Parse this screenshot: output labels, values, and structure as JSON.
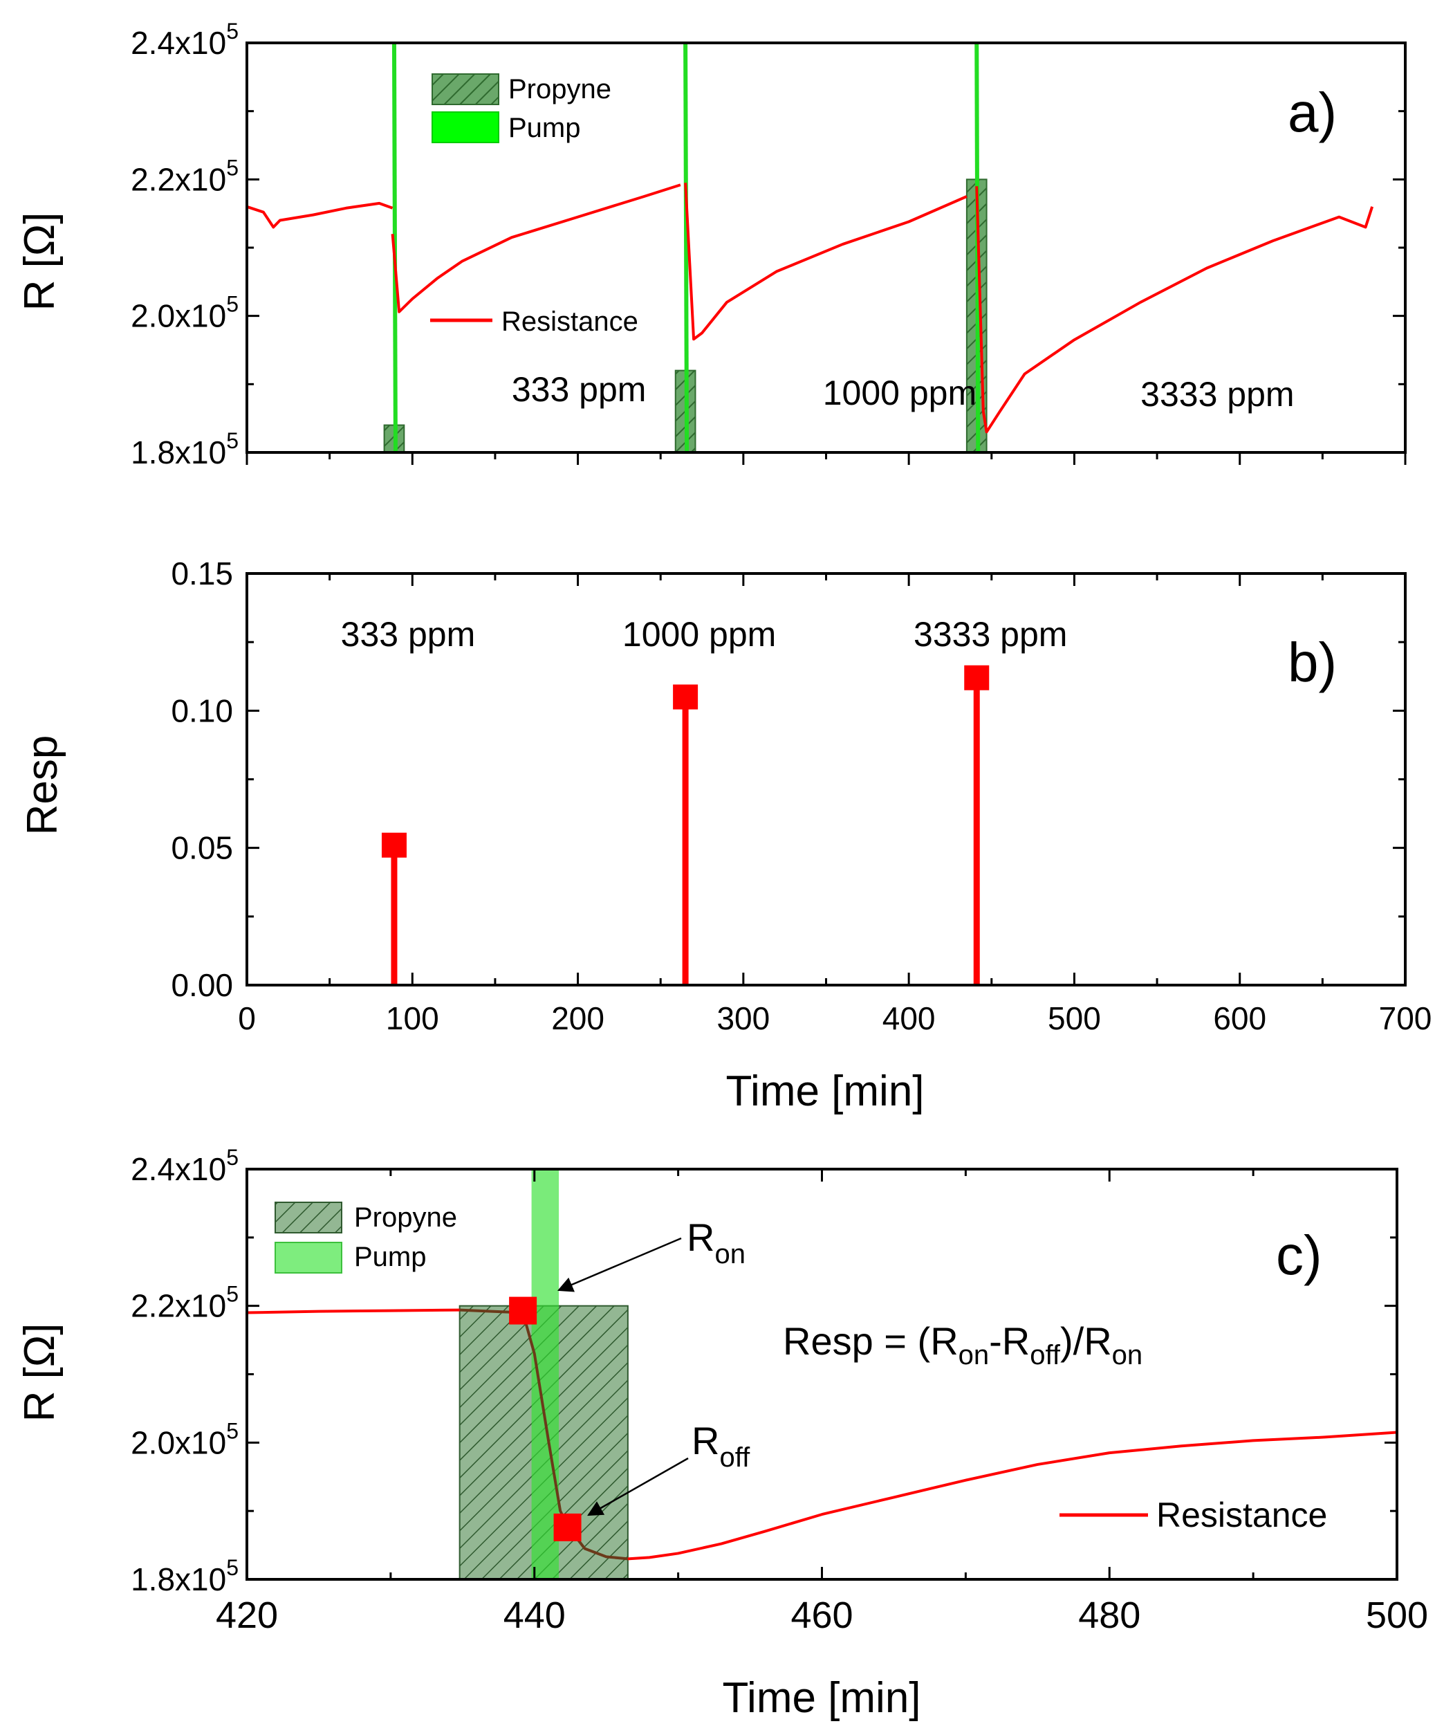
{
  "chart_data": [
    {
      "id": "a",
      "type": "line",
      "panel_label": "a)",
      "ylabel": "R [Ω]",
      "xlabel": "",
      "xlim": [
        0,
        700
      ],
      "ylim": [
        180000,
        240000
      ],
      "y_ticks": [
        {
          "value": 180000,
          "mant": "1.8x10",
          "exp": "5"
        },
        {
          "value": 200000,
          "mant": "2.0x10",
          "exp": "5"
        },
        {
          "value": 220000,
          "mant": "2.2x10",
          "exp": "5"
        },
        {
          "value": 240000,
          "mant": "2.4x10",
          "exp": "5"
        }
      ],
      "legend": {
        "propyne": "Propyne",
        "pump": "Pump",
        "resistance": "Resistance"
      },
      "propyne_bars": [
        {
          "x0": 83,
          "x1": 95,
          "top": 184000
        },
        {
          "x0": 259,
          "x1": 271,
          "top": 192000
        },
        {
          "x0": 435,
          "x1": 447,
          "top": 220000
        }
      ],
      "pump_lines": [
        89,
        265,
        441
      ],
      "annotations": [
        {
          "text": "333 ppm",
          "x": 160,
          "y": 187500
        },
        {
          "text": "1000 ppm",
          "x": 348,
          "y": 187000
        },
        {
          "text": "3333 ppm",
          "x": 540,
          "y": 186800
        }
      ],
      "series": [
        {
          "name": "Resistance",
          "color": "#ff0000",
          "segments": [
            {
              "x": [
                0,
                10,
                16,
                20,
                40,
                60,
                80,
                88
              ],
              "y": [
                216000,
                215200,
                213000,
                214000,
                214800,
                215800,
                216500,
                215800
              ]
            },
            {
              "x": [
                88,
                92,
                100,
                115,
                130,
                160,
                200,
                240,
                262
              ],
              "y": [
                212000,
                200600,
                202500,
                205500,
                208000,
                211500,
                214500,
                217500,
                219200
              ]
            },
            {
              "x": [
                265,
                270,
                275,
                290,
                320,
                360,
                400,
                435
              ],
              "y": [
                219500,
                196600,
                197500,
                202000,
                206500,
                210500,
                213800,
                217500
              ]
            },
            {
              "x": [
                441,
                445,
                447,
                455,
                470,
                500,
                540,
                580,
                620,
                660,
                676,
                678,
                680
              ],
              "y": [
                219000,
                186000,
                183000,
                186000,
                191500,
                196500,
                202000,
                207000,
                211000,
                214500,
                213000,
                214500,
                216000
              ]
            }
          ]
        }
      ]
    },
    {
      "id": "b",
      "type": "scatter",
      "panel_label": "b)",
      "ylabel": "Resp",
      "xlabel": "Time [min]",
      "xlim": [
        0,
        700
      ],
      "ylim": [
        0,
        0.15
      ],
      "x_ticks": [
        0,
        100,
        200,
        300,
        400,
        500,
        600,
        700
      ],
      "y_ticks": [
        "0.00",
        "0.05",
        "0.10",
        "0.15"
      ],
      "x": [
        89,
        265,
        441
      ],
      "values": [
        0.051,
        0.105,
        0.112
      ],
      "labels": [
        "333 ppm",
        "1000 ppm",
        "3333 ppm"
      ],
      "color": "#ff0000"
    },
    {
      "id": "c",
      "type": "line",
      "panel_label": "c)",
      "ylabel": "R [Ω]",
      "xlabel": "Time [min]",
      "xlim": [
        420,
        500
      ],
      "ylim": [
        180000,
        240000
      ],
      "x_ticks": [
        420,
        440,
        460,
        480,
        500
      ],
      "y_ticks": [
        {
          "value": 180000,
          "mant": "1.8x10",
          "exp": "5"
        },
        {
          "value": 200000,
          "mant": "2.0x10",
          "exp": "5"
        },
        {
          "value": 220000,
          "mant": "2.2x10",
          "exp": "5"
        },
        {
          "value": 240000,
          "mant": "2.4x10",
          "exp": "5"
        }
      ],
      "legend": {
        "propyne": "Propyne",
        "pump": "Pump",
        "resistance": "Resistance"
      },
      "propyne_bar": {
        "x0": 434.8,
        "x1": 446.5,
        "top": 220000
      },
      "pump_bar": {
        "x0": 439.8,
        "x1": 441.7,
        "top": 240000
      },
      "markers": [
        {
          "name": "R_on",
          "main": "R",
          "sub": "on",
          "x": 439.2,
          "y": 219300
        },
        {
          "name": "R_off",
          "main": "R",
          "sub": "off",
          "x": 442.3,
          "y": 187600
        }
      ],
      "formula": {
        "a": "Resp = (R",
        "b": "on",
        "c": "-R",
        "d": "off",
        "e": ")/R",
        "f": "on"
      },
      "series": [
        {
          "name": "Resistance",
          "color": "#ff0000",
          "x": [
            420,
            425,
            430,
            434.8
          ],
          "y": [
            219000,
            219200,
            219300,
            219400
          ]
        },
        {
          "name": "Resistance (exposure)",
          "color": "#6b3a1a",
          "x": [
            434.8,
            437,
            439.2,
            440,
            441,
            441.8,
            442.3,
            443.5,
            445,
            446.5
          ],
          "y": [
            219400,
            219200,
            219000,
            213000,
            200000,
            190000,
            187800,
            184500,
            183300,
            183000
          ]
        },
        {
          "name": "Resistance (recovery)",
          "color": "#ff0000",
          "x": [
            446.5,
            448,
            450,
            453,
            456,
            460,
            465,
            470,
            475,
            480,
            485,
            490,
            495,
            500
          ],
          "y": [
            183000,
            183200,
            183800,
            185200,
            187000,
            189500,
            192000,
            194500,
            196800,
            198500,
            199500,
            200300,
            200800,
            201500
          ]
        }
      ]
    }
  ]
}
